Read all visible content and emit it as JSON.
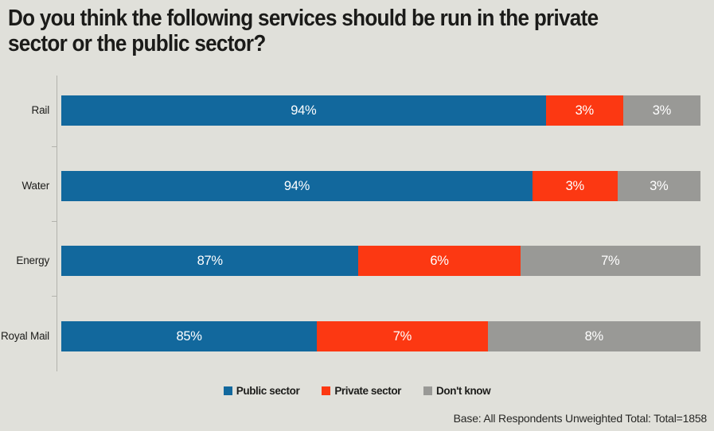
{
  "title": {
    "line1": "Do you think the following services should be run in the private",
    "line2": "sector or the public sector?"
  },
  "chart_data": {
    "type": "bar",
    "orientation": "horizontal",
    "stacked": true,
    "categories": [
      "Rail",
      "Water",
      "Energy",
      "Royal Mail"
    ],
    "series": [
      {
        "name": "Public sector",
        "color": "#12689d",
        "values": [
          94,
          94,
          87,
          85
        ]
      },
      {
        "name": "Private sector",
        "color": "#fc3812",
        "values": [
          3,
          3,
          6,
          7
        ]
      },
      {
        "name": "Don't know",
        "color": "#999996",
        "values": [
          3,
          3,
          7,
          8
        ]
      }
    ],
    "value_suffix": "%",
    "data_labels": "inside-center-white",
    "legend_position": "bottom-center",
    "grid": false,
    "visual_segment_widths_pct": [
      [
        75.8,
        12.1,
        12.1
      ],
      [
        73.7,
        13.3,
        13.0
      ],
      [
        46.5,
        25.3,
        28.2
      ],
      [
        40.0,
        26.7,
        33.3
      ]
    ]
  },
  "footer": {
    "base_note": "Base: All Respondents Unweighted Total: Total=1858"
  },
  "colors": {
    "background": "#e0e0da",
    "title_text": "#1b1b19",
    "axis": "#b3b3ad",
    "public_sector": "#12689d",
    "private_sector": "#fc3812",
    "dont_know": "#999996"
  }
}
